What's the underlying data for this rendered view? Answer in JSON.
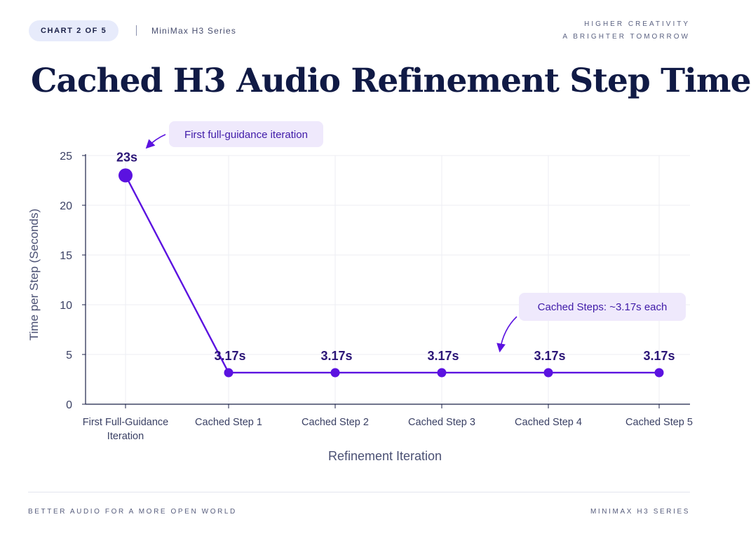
{
  "header": {
    "badge": "CHART 2 OF 5",
    "series": "MiniMax H3 Series",
    "tagline": [
      "HIGHER CREATIVITY",
      "A BRIGHTER TOMORROW"
    ]
  },
  "title": "Cached H3 Audio Refinement Step Time",
  "footer": {
    "left": "BETTER AUDIO FOR A MORE OPEN WORLD",
    "right": "MINIMAX H3 SERIES"
  },
  "colors": {
    "accent": "#5b12e0",
    "callout_bg": "#efe9fc",
    "axis": "#1b2148",
    "grid": "#eceef3"
  },
  "chart_data": {
    "type": "line",
    "categories": [
      [
        "First Full-Guidance",
        "Iteration"
      ],
      [
        "Cached Step 1"
      ],
      [
        "Cached Step 2"
      ],
      [
        "Cached Step 3"
      ],
      [
        "Cached Step 4"
      ],
      [
        "Cached Step 5"
      ]
    ],
    "values": [
      23,
      3.17,
      3.17,
      3.17,
      3.17,
      3.17
    ],
    "data_labels": [
      "23s",
      "3.17s",
      "3.17s",
      "3.17s",
      "3.17s",
      "3.17s"
    ],
    "xlabel": "Refinement Iteration",
    "ylabel": "Time per Step (Seconds)",
    "ylim": [
      0,
      25
    ],
    "yticks": [
      0,
      5,
      10,
      15,
      20,
      25
    ],
    "grid": true,
    "annotations": [
      {
        "text": "First full-guidance iteration",
        "target_index": 0
      },
      {
        "text": "Cached Steps: ~3.17s each",
        "target_index": 3
      }
    ]
  }
}
